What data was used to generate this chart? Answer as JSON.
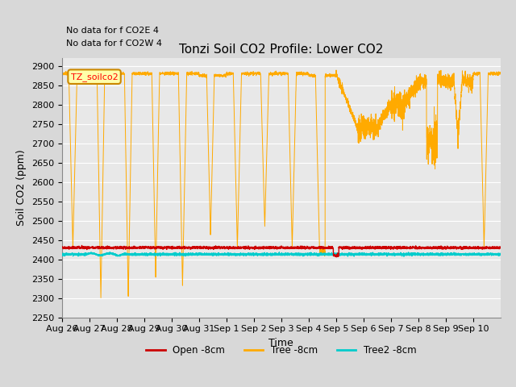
{
  "title": "Tonzi Soil CO2 Profile: Lower CO2",
  "xlabel": "Time",
  "ylabel": "Soil CO2 (ppm)",
  "ylim": [
    2250,
    2920
  ],
  "yticks": [
    2250,
    2300,
    2350,
    2400,
    2450,
    2500,
    2550,
    2600,
    2650,
    2700,
    2750,
    2800,
    2850,
    2900
  ],
  "annotation_lines": [
    "No data for f CO2E 4",
    "No data for f CO2W 4"
  ],
  "legend_label": "TZ_soilco2",
  "series_labels": [
    "Open -8cm",
    "Tree -8cm",
    "Tree2 -8cm"
  ],
  "series_colors": [
    "#cc0000",
    "#ffaa00",
    "#00cccc"
  ],
  "background_color": "#d8d8d8",
  "plot_bg_color": "#e8e8e8",
  "grid_color": "#ffffff",
  "open_base": 2430,
  "tree2_base": 2413,
  "xtick_labels": [
    "Aug 26",
    "Aug 27",
    "Aug 28",
    "Aug 29",
    "Aug 30",
    "Aug 31",
    "Sep 1",
    "Sep 2",
    "Sep 3",
    "Sep 4",
    "Sep 5",
    "Sep 6",
    "Sep 7",
    "Sep 8",
    "Sep 9",
    "Sep 10"
  ],
  "title_fontsize": 11,
  "axis_fontsize": 9,
  "tick_fontsize": 8
}
